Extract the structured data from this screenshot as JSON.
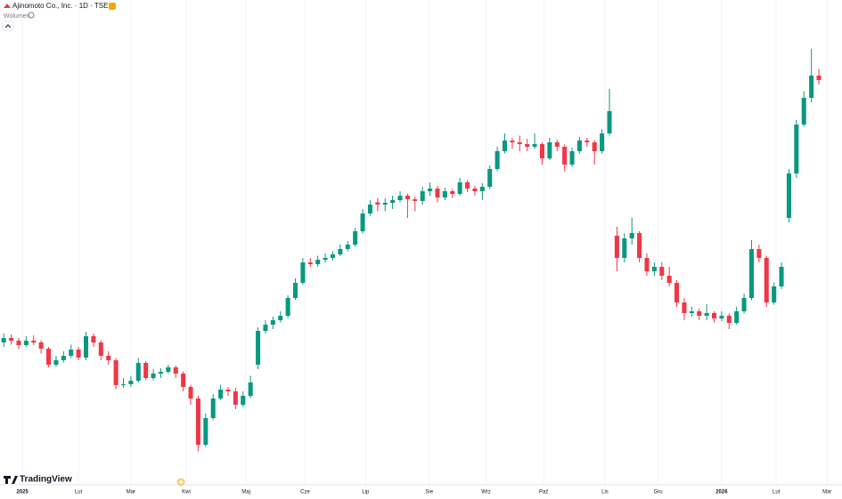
{
  "chart_data": {
    "type": "candlestick",
    "title": "Ajinomoto Co., Inc. · 1D · TSE",
    "volume_label": "Wolumen",
    "brand": "TradingView",
    "dividend_marker": "D",
    "up_color": "#089981",
    "down_color": "#f23645",
    "grid": true,
    "ylim": [
      2600,
      4740
    ],
    "xlim": [
      -0.5,
      111.5
    ],
    "xticks": [
      {
        "value": 2.5,
        "label": "2025"
      },
      {
        "value": 10,
        "label": "Lut"
      },
      {
        "value": 17,
        "label": "Mar"
      },
      {
        "value": 24.4,
        "label": "Kwi"
      },
      {
        "value": 32.4,
        "label": "Maj"
      },
      {
        "value": 40.3,
        "label": "Cze"
      },
      {
        "value": 48.4,
        "label": "Lip"
      },
      {
        "value": 56.9,
        "label": "Sie"
      },
      {
        "value": 64.5,
        "label": "Wrz"
      },
      {
        "value": 72.2,
        "label": "Paź"
      },
      {
        "value": 80.4,
        "label": "Lis"
      },
      {
        "value": 87.5,
        "label": "Gru"
      },
      {
        "value": 96,
        "label": "2026"
      },
      {
        "value": 103.3,
        "label": "Lut"
      },
      {
        "value": 110.1,
        "label": "Mar"
      }
    ],
    "dividend_x": 23.7,
    "ohlc": [
      [
        3200,
        3240,
        3180,
        3220
      ],
      [
        3220,
        3236,
        3190,
        3208
      ],
      [
        3208,
        3220,
        3170,
        3188
      ],
      [
        3188,
        3228,
        3180,
        3208
      ],
      [
        3208,
        3232,
        3188,
        3200
      ],
      [
        3200,
        3210,
        3150,
        3172
      ],
      [
        3172,
        3180,
        3088,
        3100
      ],
      [
        3100,
        3140,
        3090,
        3120
      ],
      [
        3120,
        3160,
        3110,
        3140
      ],
      [
        3140,
        3190,
        3130,
        3168
      ],
      [
        3168,
        3180,
        3120,
        3132
      ],
      [
        3132,
        3248,
        3120,
        3228
      ],
      [
        3228,
        3240,
        3180,
        3200
      ],
      [
        3200,
        3210,
        3120,
        3140
      ],
      [
        3140,
        3160,
        3100,
        3120
      ],
      [
        3120,
        3130,
        2990,
        3008
      ],
      [
        3008,
        3040,
        2996,
        3012
      ],
      [
        3012,
        3048,
        3000,
        3028
      ],
      [
        3028,
        3130,
        3020,
        3108
      ],
      [
        3108,
        3116,
        3030,
        3040
      ],
      [
        3040,
        3080,
        3030,
        3060
      ],
      [
        3060,
        3084,
        3040,
        3068
      ],
      [
        3068,
        3100,
        3060,
        3088
      ],
      [
        3088,
        3096,
        3040,
        3060
      ],
      [
        3060,
        3070,
        2980,
        3000
      ],
      [
        3000,
        3010,
        2920,
        2948
      ],
      [
        2948,
        2960,
        2710,
        2740
      ],
      [
        2740,
        2880,
        2730,
        2860
      ],
      [
        2860,
        2968,
        2850,
        2948
      ],
      [
        2948,
        3010,
        2940,
        2988
      ],
      [
        2988,
        3000,
        2960,
        2980
      ],
      [
        2980,
        2996,
        2900,
        2920
      ],
      [
        2920,
        2980,
        2910,
        2960
      ],
      [
        2960,
        3050,
        2950,
        3020
      ],
      [
        3100,
        3268,
        3080,
        3252
      ],
      [
        3252,
        3300,
        3240,
        3280
      ],
      [
        3280,
        3316,
        3260,
        3300
      ],
      [
        3300,
        3340,
        3290,
        3320
      ],
      [
        3320,
        3412,
        3310,
        3400
      ],
      [
        3400,
        3488,
        3392,
        3468
      ],
      [
        3468,
        3580,
        3460,
        3560
      ],
      [
        3560,
        3580,
        3540,
        3552
      ],
      [
        3552,
        3590,
        3540,
        3572
      ],
      [
        3572,
        3600,
        3560,
        3580
      ],
      [
        3580,
        3610,
        3568,
        3596
      ],
      [
        3596,
        3640,
        3588,
        3620
      ],
      [
        3620,
        3656,
        3610,
        3640
      ],
      [
        3640,
        3716,
        3630,
        3700
      ],
      [
        3700,
        3800,
        3690,
        3780
      ],
      [
        3780,
        3840,
        3770,
        3820
      ],
      [
        3830,
        3850,
        3790,
        3820
      ],
      [
        3820,
        3848,
        3790,
        3828
      ],
      [
        3828,
        3860,
        3800,
        3840
      ],
      [
        3840,
        3880,
        3830,
        3860
      ],
      [
        3860,
        3870,
        3760,
        3844
      ],
      [
        3844,
        3856,
        3790,
        3836
      ],
      [
        3836,
        3900,
        3820,
        3880
      ],
      [
        3880,
        3920,
        3860,
        3892
      ],
      [
        3892,
        3904,
        3830,
        3852
      ],
      [
        3852,
        3896,
        3840,
        3880
      ],
      [
        3880,
        3890,
        3850,
        3868
      ],
      [
        3868,
        3940,
        3860,
        3920
      ],
      [
        3920,
        3930,
        3876,
        3892
      ],
      [
        3892,
        3904,
        3860,
        3880
      ],
      [
        3880,
        3916,
        3840,
        3900
      ],
      [
        3900,
        3996,
        3890,
        3980
      ],
      [
        3980,
        4080,
        3970,
        4060
      ],
      [
        4060,
        4140,
        4050,
        4108
      ],
      [
        4108,
        4120,
        4070,
        4100
      ],
      [
        4100,
        4130,
        4060,
        4092
      ],
      [
        4092,
        4116,
        4060,
        4080
      ],
      [
        4080,
        4140,
        4070,
        4092
      ],
      [
        4092,
        4100,
        4000,
        4028
      ],
      [
        4028,
        4120,
        4020,
        4100
      ],
      [
        4100,
        4112,
        4060,
        4080
      ],
      [
        4080,
        4090,
        3968,
        4000
      ],
      [
        4000,
        4076,
        3990,
        4060
      ],
      [
        4060,
        4124,
        4050,
        4108
      ],
      [
        4108,
        4120,
        4080,
        4100
      ],
      [
        4100,
        4110,
        4000,
        4060
      ],
      [
        4060,
        4160,
        4050,
        4140
      ],
      [
        4140,
        4340,
        4130,
        4240
      ],
      [
        3680,
        3720,
        3520,
        3580
      ],
      [
        3580,
        3690,
        3560,
        3668
      ],
      [
        3668,
        3760,
        3640,
        3692
      ],
      [
        3692,
        3700,
        3560,
        3580
      ],
      [
        3580,
        3600,
        3500,
        3520
      ],
      [
        3520,
        3560,
        3500,
        3540
      ],
      [
        3540,
        3560,
        3480,
        3500
      ],
      [
        3500,
        3540,
        3452,
        3468
      ],
      [
        3468,
        3480,
        3360,
        3380
      ],
      [
        3380,
        3400,
        3300,
        3332
      ],
      [
        3332,
        3360,
        3316,
        3340
      ],
      [
        3340,
        3352,
        3300,
        3320
      ],
      [
        3320,
        3372,
        3300,
        3332
      ],
      [
        3332,
        3340,
        3290,
        3308
      ],
      [
        3308,
        3340,
        3296,
        3320
      ],
      [
        3320,
        3330,
        3260,
        3288
      ],
      [
        3288,
        3360,
        3280,
        3340
      ],
      [
        3340,
        3420,
        3330,
        3400
      ],
      [
        3400,
        3660,
        3390,
        3620
      ],
      [
        3620,
        3640,
        3560,
        3580
      ],
      [
        3580,
        3590,
        3360,
        3380
      ],
      [
        3380,
        3470,
        3370,
        3452
      ],
      [
        3452,
        3560,
        3440,
        3540
      ],
      [
        3760,
        3980,
        3740,
        3960
      ],
      [
        3960,
        4200,
        3940,
        4180
      ],
      [
        4180,
        4330,
        4170,
        4300
      ],
      [
        4300,
        4520,
        4280,
        4400
      ],
      [
        4400,
        4430,
        4360,
        4380
      ]
    ]
  }
}
